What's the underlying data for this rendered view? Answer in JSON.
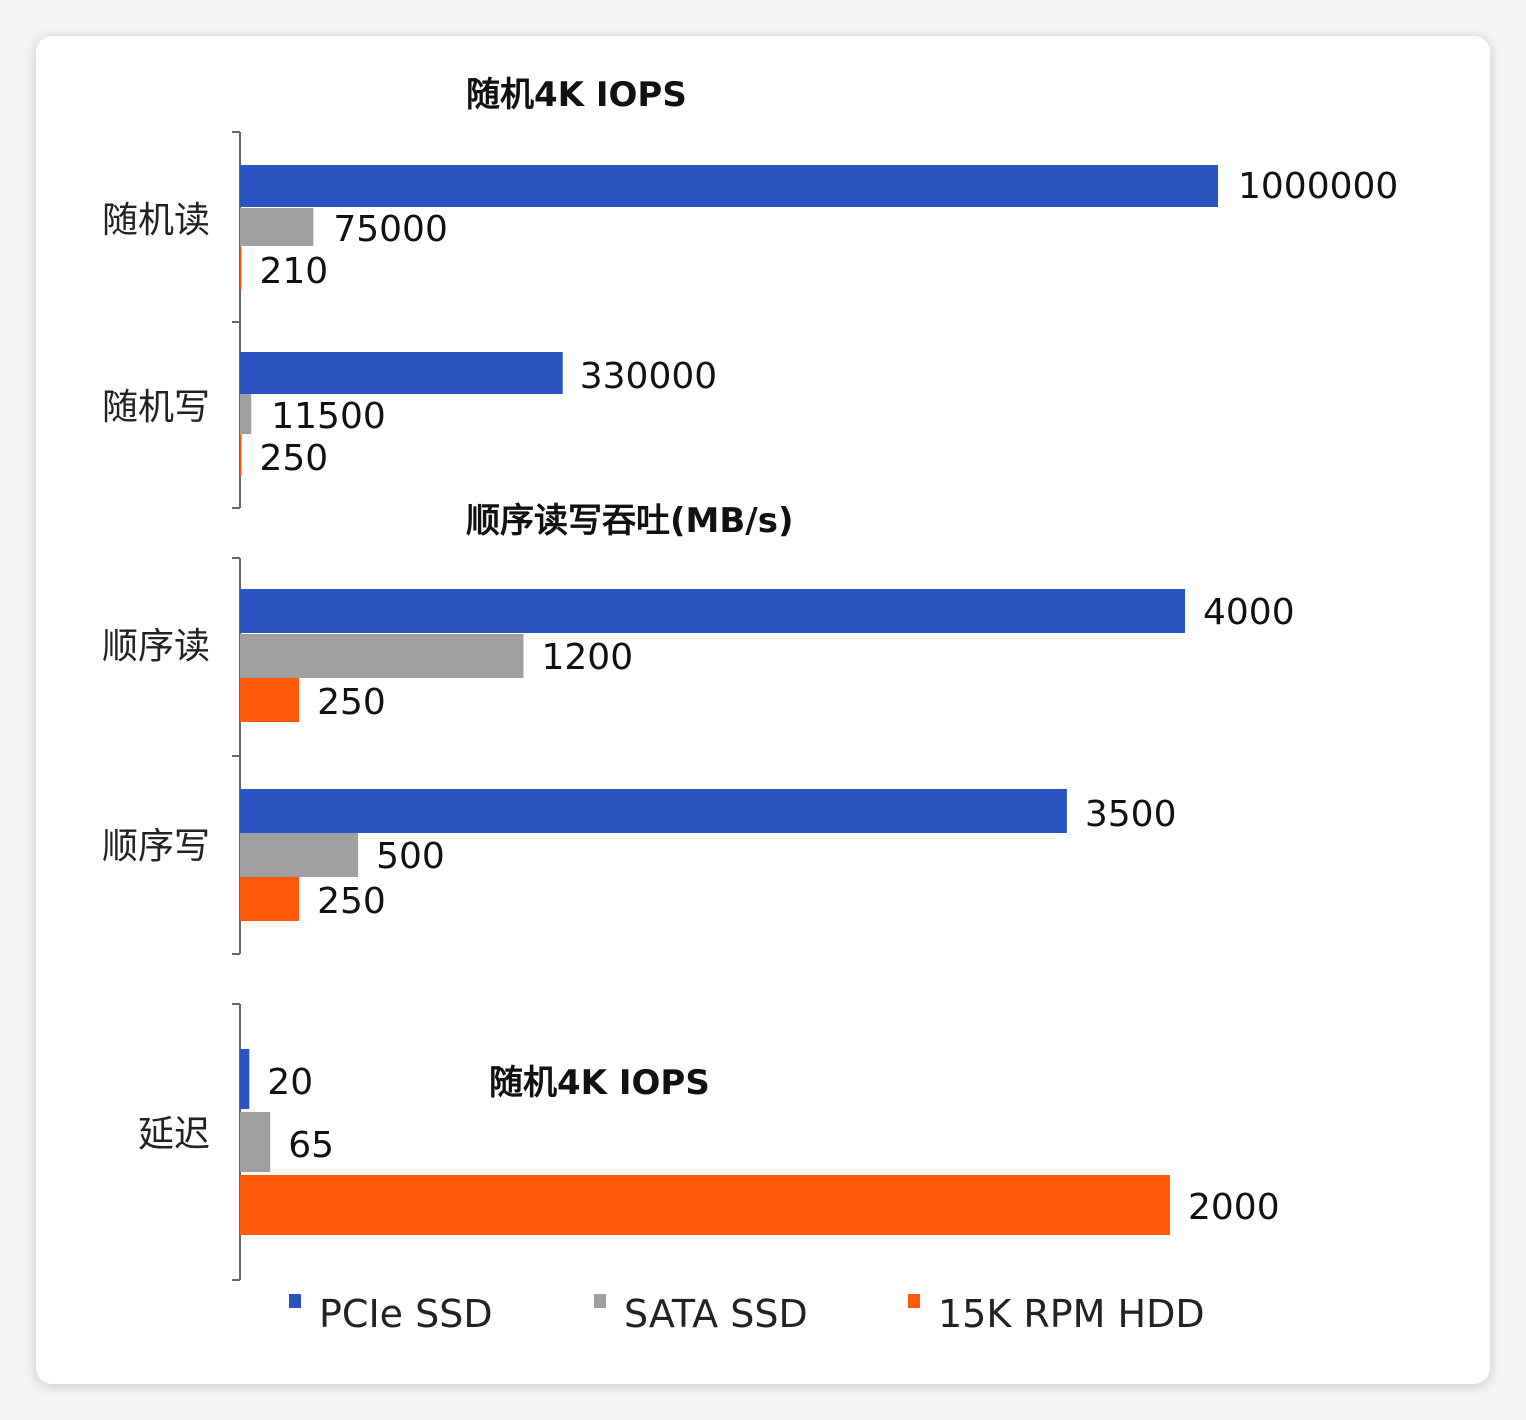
{
  "chart_data": {
    "type": "bar",
    "orientation": "horizontal",
    "colors": {
      "pcie": "#2a55c0",
      "sata": "#a0a0a0",
      "hdd": "#ff5a0c"
    },
    "series": [
      {
        "name": "PCIe SSD",
        "color_key": "pcie"
      },
      {
        "name": "SATA SSD",
        "color_key": "sata"
      },
      {
        "name": "15K RPM HDD",
        "color_key": "hdd"
      }
    ],
    "legend_position": "bottom",
    "panels": [
      {
        "title": "随机4K IOPS",
        "categories": [
          {
            "label": "随机读",
            "values": [
              1000000,
              75000,
              210
            ]
          },
          {
            "label": "随机写",
            "values": [
              330000,
              11500,
              250
            ]
          }
        ]
      },
      {
        "title": "顺序读写吞吐(MB/s)",
        "categories": [
          {
            "label": "顺序读",
            "values": [
              4000,
              1200,
              250
            ]
          },
          {
            "label": "顺序写",
            "values": [
              3500,
              500,
              250
            ]
          }
        ]
      },
      {
        "title": "随机4K IOPS",
        "categories": [
          {
            "label": "延迟",
            "values": [
              20,
              65,
              2000
            ]
          }
        ]
      }
    ]
  }
}
